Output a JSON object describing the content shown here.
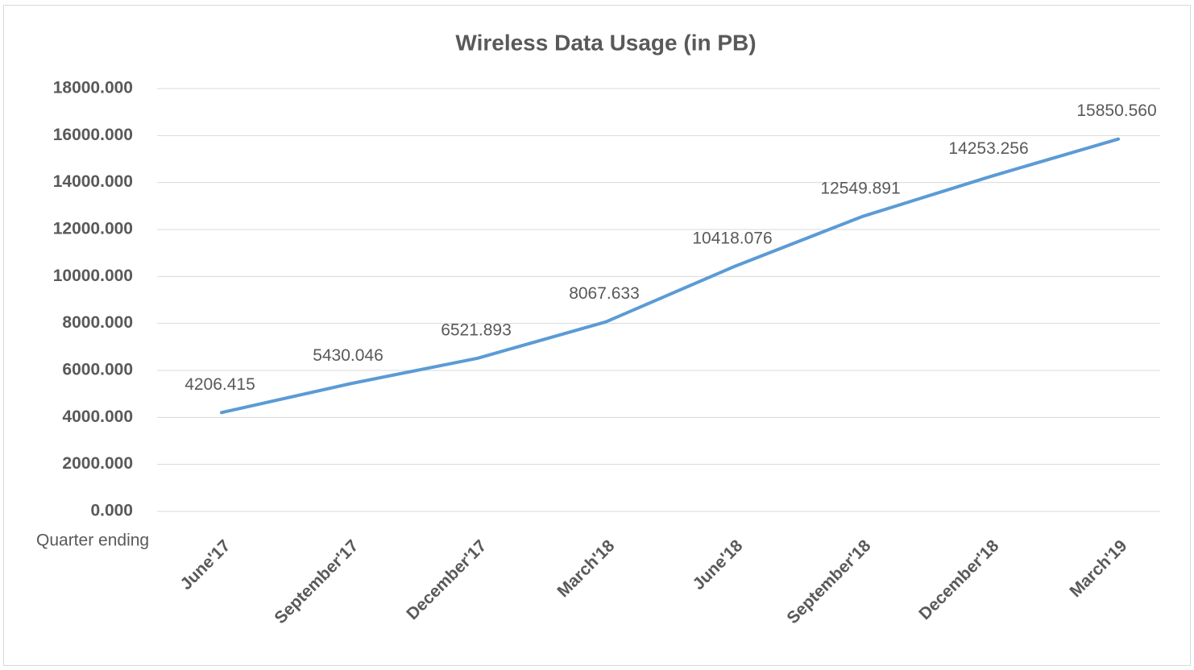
{
  "chart_data": {
    "type": "line",
    "title": "Wireless Data Usage (in PB)",
    "x_label": "Quarter ending",
    "categories": [
      "June'17",
      "September'17",
      "December'17",
      "March'18",
      "June'18",
      "September'18",
      "December'18",
      "March'19"
    ],
    "series": [
      {
        "name": "Wireless Data Usage (in PB)",
        "color": "#5b9bd5",
        "values": [
          4206.415,
          5430.046,
          6521.893,
          8067.633,
          10418.076,
          12549.891,
          14253.256,
          15850.56
        ],
        "value_labels": [
          "4206.415",
          "5430.046",
          "6521.893",
          "8067.633",
          "10418.076",
          "12549.891",
          "14253.256",
          "15850.560"
        ]
      }
    ],
    "ylim": [
      0,
      18000
    ],
    "yticks": [
      {
        "value": 0,
        "label": "0.000"
      },
      {
        "value": 2000,
        "label": "2000.000"
      },
      {
        "value": 4000,
        "label": "4000.000"
      },
      {
        "value": 6000,
        "label": "6000.000"
      },
      {
        "value": 8000,
        "label": "8000.000"
      },
      {
        "value": 10000,
        "label": "10000.000"
      },
      {
        "value": 12000,
        "label": "12000.000"
      },
      {
        "value": 14000,
        "label": "14000.000"
      },
      {
        "value": 16000,
        "label": "16000.000"
      },
      {
        "value": 18000,
        "label": "18000.000"
      }
    ],
    "grid": true
  }
}
